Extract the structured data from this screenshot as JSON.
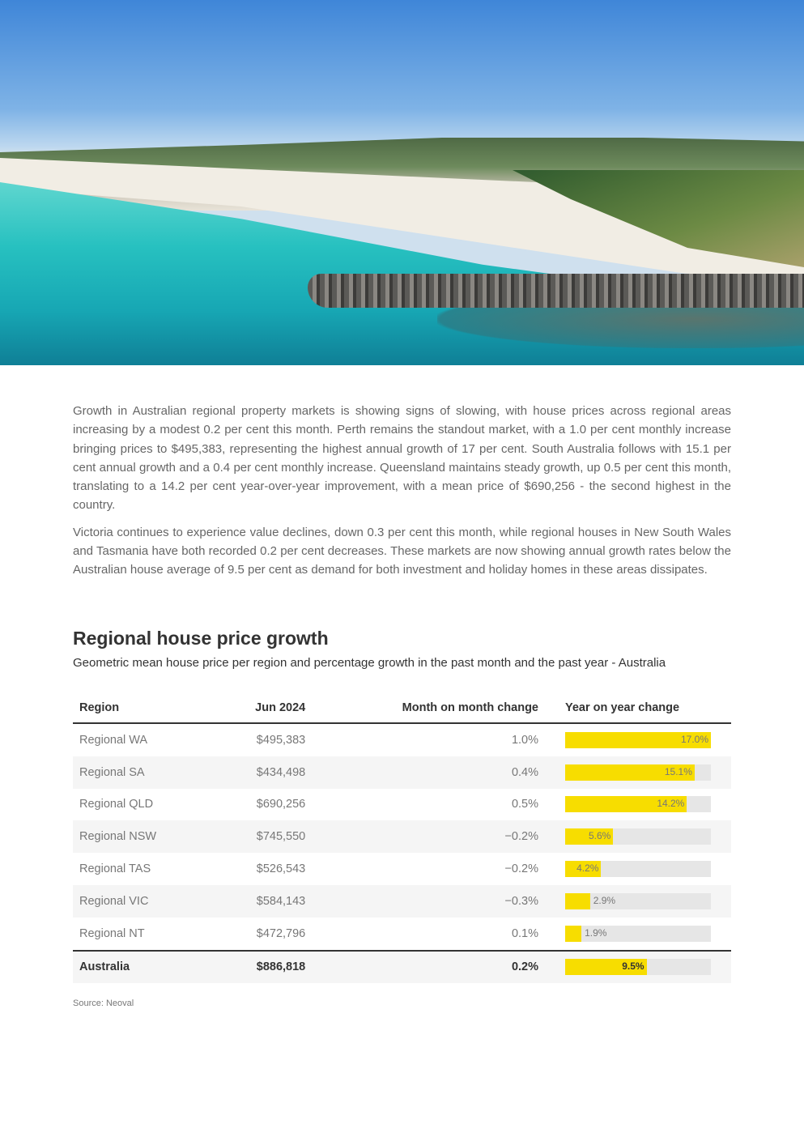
{
  "paragraphs": [
    "Growth in Australian regional property markets is showing signs of slowing, with house prices across regional areas increasing by a modest 0.2 per cent this month. Perth remains the standout market, with a 1.0 per cent monthly increase bringing prices to $495,383, representing the highest annual growth of 17 per cent. South Australia follows with 15.1 per cent annual growth and a 0.4 per cent monthly increase. Queensland maintains steady growth, up 0.5 per cent this month, translating to a 14.2 per cent year-over-year improvement, with a mean price of $690,256 - the second highest in the country.",
    "Victoria continues to experience value declines, down 0.3 per cent this month, while regional houses in New South Wales and Tasmania have both recorded 0.2 per cent decreases. These markets are now showing annual growth rates below the Australian house average of 9.5 per cent as demand for both investment and holiday homes in these areas dissipates."
  ],
  "table_title": "Regional house price growth",
  "table_subtitle": "Geometric mean house price per region and percentage growth in the past month and the past year - Australia",
  "colors": {
    "bar": "#f7dd00",
    "track": "#e6e6e6"
  },
  "table": {
    "headers": [
      "Region",
      "Jun 2024",
      "Month on month change",
      "Year on year change"
    ],
    "yoy_max": 17.0,
    "rows": [
      {
        "region": "Regional WA",
        "price": "$495,383",
        "mom": "1.0%",
        "yoy": 17.0,
        "yoy_label": "17.0%"
      },
      {
        "region": "Regional SA",
        "price": "$434,498",
        "mom": "0.4%",
        "yoy": 15.1,
        "yoy_label": "15.1%"
      },
      {
        "region": "Regional QLD",
        "price": "$690,256",
        "mom": "0.5%",
        "yoy": 14.2,
        "yoy_label": "14.2%"
      },
      {
        "region": "Regional NSW",
        "price": "$745,550",
        "mom": "−0.2%",
        "yoy": 5.6,
        "yoy_label": "5.6%"
      },
      {
        "region": "Regional TAS",
        "price": "$526,543",
        "mom": "−0.2%",
        "yoy": 4.2,
        "yoy_label": "4.2%"
      },
      {
        "region": "Regional VIC",
        "price": "$584,143",
        "mom": "−0.3%",
        "yoy": 2.9,
        "yoy_label": "2.9%"
      },
      {
        "region": "Regional NT",
        "price": "$472,796",
        "mom": "0.1%",
        "yoy": 1.9,
        "yoy_label": "1.9%"
      }
    ],
    "total": {
      "region": "Australia",
      "price": "$886,818",
      "mom": "0.2%",
      "yoy": 9.5,
      "yoy_label": "9.5%"
    }
  },
  "source": "Source: Neoval"
}
